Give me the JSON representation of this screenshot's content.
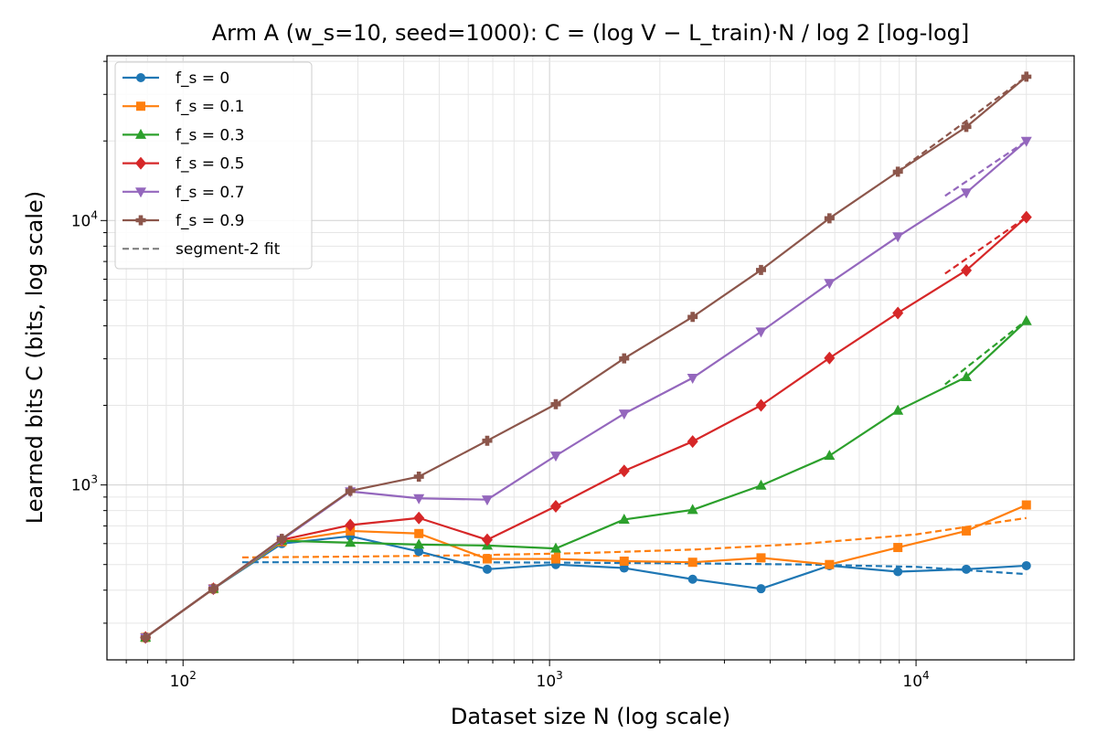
{
  "chart_data": {
    "type": "line",
    "title": "Arm A (w_s=10, seed=1000): C = (log V − L_train)·N / log 2  [log-log]",
    "xlabel": "Dataset size N (log scale)",
    "ylabel": "Learned bits C (bits, log scale)",
    "xscale": "log",
    "yscale": "log",
    "xlim": [
      62,
      27000
    ],
    "ylim": [
      218,
      42000
    ],
    "grid": true,
    "legend_placement": "top-left",
    "x_ticks": [
      {
        "value": 100,
        "base": "10",
        "exp": "2"
      },
      {
        "value": 1000,
        "base": "10",
        "exp": "3"
      },
      {
        "value": 10000,
        "base": "10",
        "exp": "4"
      }
    ],
    "y_ticks": [
      {
        "value": 1000,
        "base": "10",
        "exp": "3"
      },
      {
        "value": 10000,
        "base": "10",
        "exp": "4"
      }
    ],
    "x": [
      79,
      121,
      186,
      286,
      440,
      676,
      1040,
      1598,
      2457,
      3776,
      5804,
      8921,
      13712,
      20000
    ],
    "series": [
      {
        "name": "f_s = 0",
        "color": "#1f77b4",
        "marker": "circle",
        "values": [
          265,
          405,
          600,
          640,
          560,
          480,
          500,
          485,
          440,
          405,
          495,
          470,
          480,
          495
        ]
      },
      {
        "name": "f_s = 0.1",
        "color": "#ff7f0e",
        "marker": "square",
        "values": [
          265,
          405,
          610,
          670,
          655,
          525,
          525,
          515,
          510,
          530,
          500,
          580,
          670,
          840
        ]
      },
      {
        "name": "f_s = 0.3",
        "color": "#2ca02c",
        "marker": "triangle-up",
        "values": [
          265,
          405,
          615,
          605,
          595,
          590,
          575,
          740,
          805,
          995,
          1290,
          1910,
          2560,
          4170
        ]
      },
      {
        "name": "f_s = 0.5",
        "color": "#d62728",
        "marker": "diamond",
        "values": [
          265,
          405,
          620,
          705,
          750,
          620,
          830,
          1130,
          1460,
          2000,
          3020,
          4470,
          6480,
          10300
        ]
      },
      {
        "name": "f_s = 0.7",
        "color": "#9467bd",
        "marker": "triangle-down",
        "values": [
          265,
          405,
          620,
          945,
          890,
          880,
          1290,
          1860,
          2540,
          3800,
          5800,
          8700,
          12750,
          20000
        ]
      },
      {
        "name": "f_s = 0.9",
        "color": "#8c564b",
        "marker": "plus",
        "values": [
          265,
          405,
          625,
          950,
          1075,
          1470,
          2020,
          3010,
          4320,
          6500,
          10200,
          15300,
          22600,
          35000
        ]
      }
    ],
    "fits": [
      {
        "series": "f_s = 0",
        "color": "#1f77b4",
        "x": [
          145,
          300,
          600,
          1200,
          2500,
          5000,
          10000,
          20000
        ],
        "values": [
          510,
          510,
          510,
          508,
          505,
          500,
          490,
          460
        ]
      },
      {
        "series": "f_s = 0.1",
        "color": "#ff7f0e",
        "x": [
          145,
          300,
          600,
          1200,
          2500,
          5000,
          10000,
          20000
        ],
        "values": [
          532,
          536,
          542,
          552,
          570,
          600,
          650,
          750
        ]
      },
      {
        "series": "f_s = 0.3",
        "color": "#2ca02c",
        "x": [
          12000,
          20000
        ],
        "values": [
          2400,
          4200
        ]
      },
      {
        "series": "f_s = 0.5",
        "color": "#d62728",
        "x": [
          12000,
          20000
        ],
        "values": [
          6300,
          10300
        ]
      },
      {
        "series": "f_s = 0.7",
        "color": "#9467bd",
        "x": [
          12000,
          20000
        ],
        "values": [
          12400,
          20000
        ]
      },
      {
        "series": "f_s = 0.9",
        "color": "#8c564b",
        "x": [
          8900,
          20000
        ],
        "values": [
          15300,
          35000
        ]
      }
    ],
    "legend": [
      {
        "label": "f_s = 0",
        "color": "#1f77b4",
        "marker": "circle",
        "dashed": false
      },
      {
        "label": "f_s = 0.1",
        "color": "#ff7f0e",
        "marker": "square",
        "dashed": false
      },
      {
        "label": "f_s = 0.3",
        "color": "#2ca02c",
        "marker": "triangle-up",
        "dashed": false
      },
      {
        "label": "f_s = 0.5",
        "color": "#d62728",
        "marker": "diamond",
        "dashed": false
      },
      {
        "label": "f_s = 0.7",
        "color": "#9467bd",
        "marker": "triangle-down",
        "dashed": false
      },
      {
        "label": "f_s = 0.9",
        "color": "#8c564b",
        "marker": "plus",
        "dashed": false
      },
      {
        "label": "segment-2 fit",
        "color": "#808080",
        "marker": "none",
        "dashed": true
      }
    ]
  }
}
